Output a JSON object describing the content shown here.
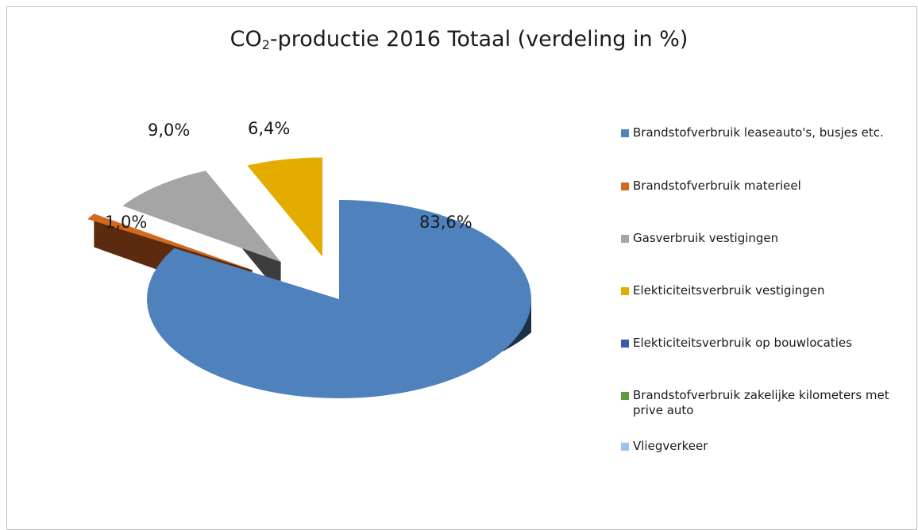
{
  "chart_data": {
    "type": "pie",
    "title_main": "CO",
    "title_sub": "2",
    "title_rest": "-productie 2016 Totaal (verdeling in %)",
    "legend_position": "right",
    "three_d": true,
    "slices": [
      {
        "label": "Brandstofverbruik leaseauto's, busjes etc.",
        "value": 83.6,
        "value_label": "83,6%",
        "color": "#4f81bd",
        "exploded": false
      },
      {
        "label": "Brandstofverbruik materieel",
        "value": 1.0,
        "value_label": "1,0%",
        "color": "#d2691e",
        "exploded": true
      },
      {
        "label": "Gasverbruik vestigingen",
        "value": 9.0,
        "value_label": "9,0%",
        "color": "#a5a5a5",
        "exploded": true
      },
      {
        "label": "Elekticiteitsverbruik vestigingen",
        "value": 6.4,
        "value_label": "6,4%",
        "color": "#e5ac00",
        "exploded": true
      },
      {
        "label": "Elekticiteitsverbruik op bouwlocaties",
        "value": 0,
        "value_label": "",
        "color": "#3a5ba0",
        "exploded": false
      },
      {
        "label": "Brandstofverbruik zakelijke kilometers met prive auto",
        "value": 0,
        "value_label": "",
        "color": "#5c9e3c",
        "exploded": false
      },
      {
        "label": "Vliegverkeer",
        "value": 0,
        "value_label": "",
        "color": "#9ec2e6",
        "exploded": false
      }
    ]
  }
}
